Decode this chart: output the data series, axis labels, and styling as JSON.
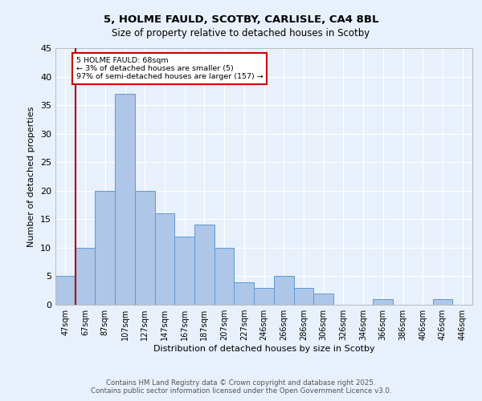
{
  "title_line1": "5, HOLME FAULD, SCOTBY, CARLISLE, CA4 8BL",
  "title_line2": "Size of property relative to detached houses in Scotby",
  "xlabel": "Distribution of detached houses by size in Scotby",
  "ylabel": "Number of detached properties",
  "bins": [
    "47sqm",
    "67sqm",
    "87sqm",
    "107sqm",
    "127sqm",
    "147sqm",
    "167sqm",
    "187sqm",
    "207sqm",
    "227sqm",
    "246sqm",
    "266sqm",
    "286sqm",
    "306sqm",
    "326sqm",
    "346sqm",
    "366sqm",
    "386sqm",
    "406sqm",
    "426sqm",
    "446sqm"
  ],
  "values": [
    5,
    10,
    20,
    37,
    20,
    16,
    12,
    14,
    10,
    4,
    3,
    5,
    3,
    2,
    0,
    0,
    1,
    0,
    0,
    1,
    0
  ],
  "bar_color": "#aec6e8",
  "bar_edge_color": "#5b9bd5",
  "vline_color": "#aa0000",
  "annotation_line1": "5 HOLME FAULD: 68sqm",
  "annotation_line2": "← 3% of detached houses are smaller (5)",
  "annotation_line3": "97% of semi-detached houses are larger (157) →",
  "annotation_box_color": "#ffffff",
  "annotation_box_edge_color": "#cc0000",
  "ylim": [
    0,
    45
  ],
  "yticks": [
    0,
    5,
    10,
    15,
    20,
    25,
    30,
    35,
    40,
    45
  ],
  "footer": "Contains HM Land Registry data © Crown copyright and database right 2025.\nContains public sector information licensed under the Open Government Licence v3.0.",
  "bg_color": "#e8f0fb",
  "plot_bg_color": "#e8f0fb"
}
